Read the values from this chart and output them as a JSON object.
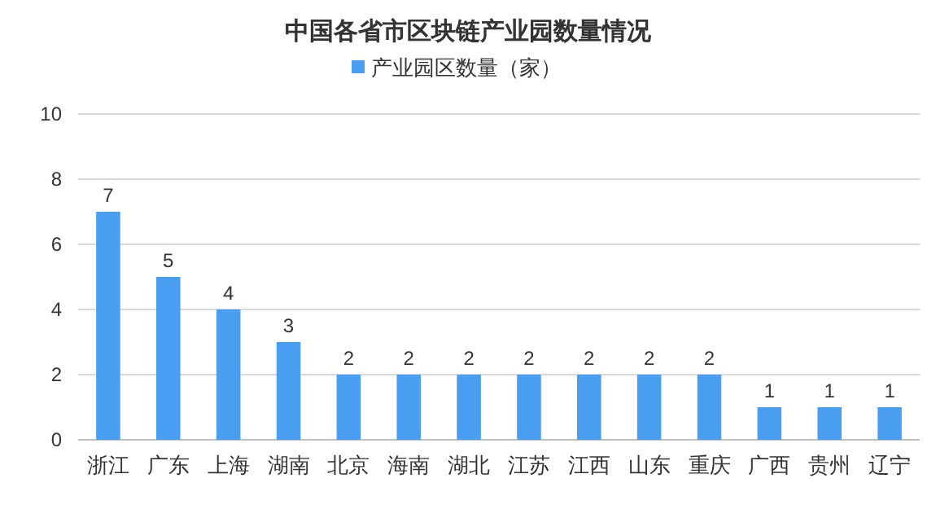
{
  "chart_data": {
    "type": "bar",
    "title": "中国各省市区块链产业园数量情况",
    "categories": [
      "浙江",
      "广东",
      "上海",
      "湖南",
      "北京",
      "海南",
      "湖北",
      "江苏",
      "江西",
      "山东",
      "重庆",
      "广西",
      "贵州",
      "辽宁"
    ],
    "series": [
      {
        "name": "产业园区数量（家）",
        "color": "#4a9ef2",
        "values": [
          7,
          5,
          4,
          3,
          2,
          2,
          2,
          2,
          2,
          2,
          2,
          1,
          1,
          1
        ]
      }
    ],
    "ylim": [
      0,
      10
    ],
    "yticks": [
      0,
      2,
      4,
      6,
      8,
      10
    ],
    "grid": "y",
    "legend": "top",
    "data_labels": true
  }
}
